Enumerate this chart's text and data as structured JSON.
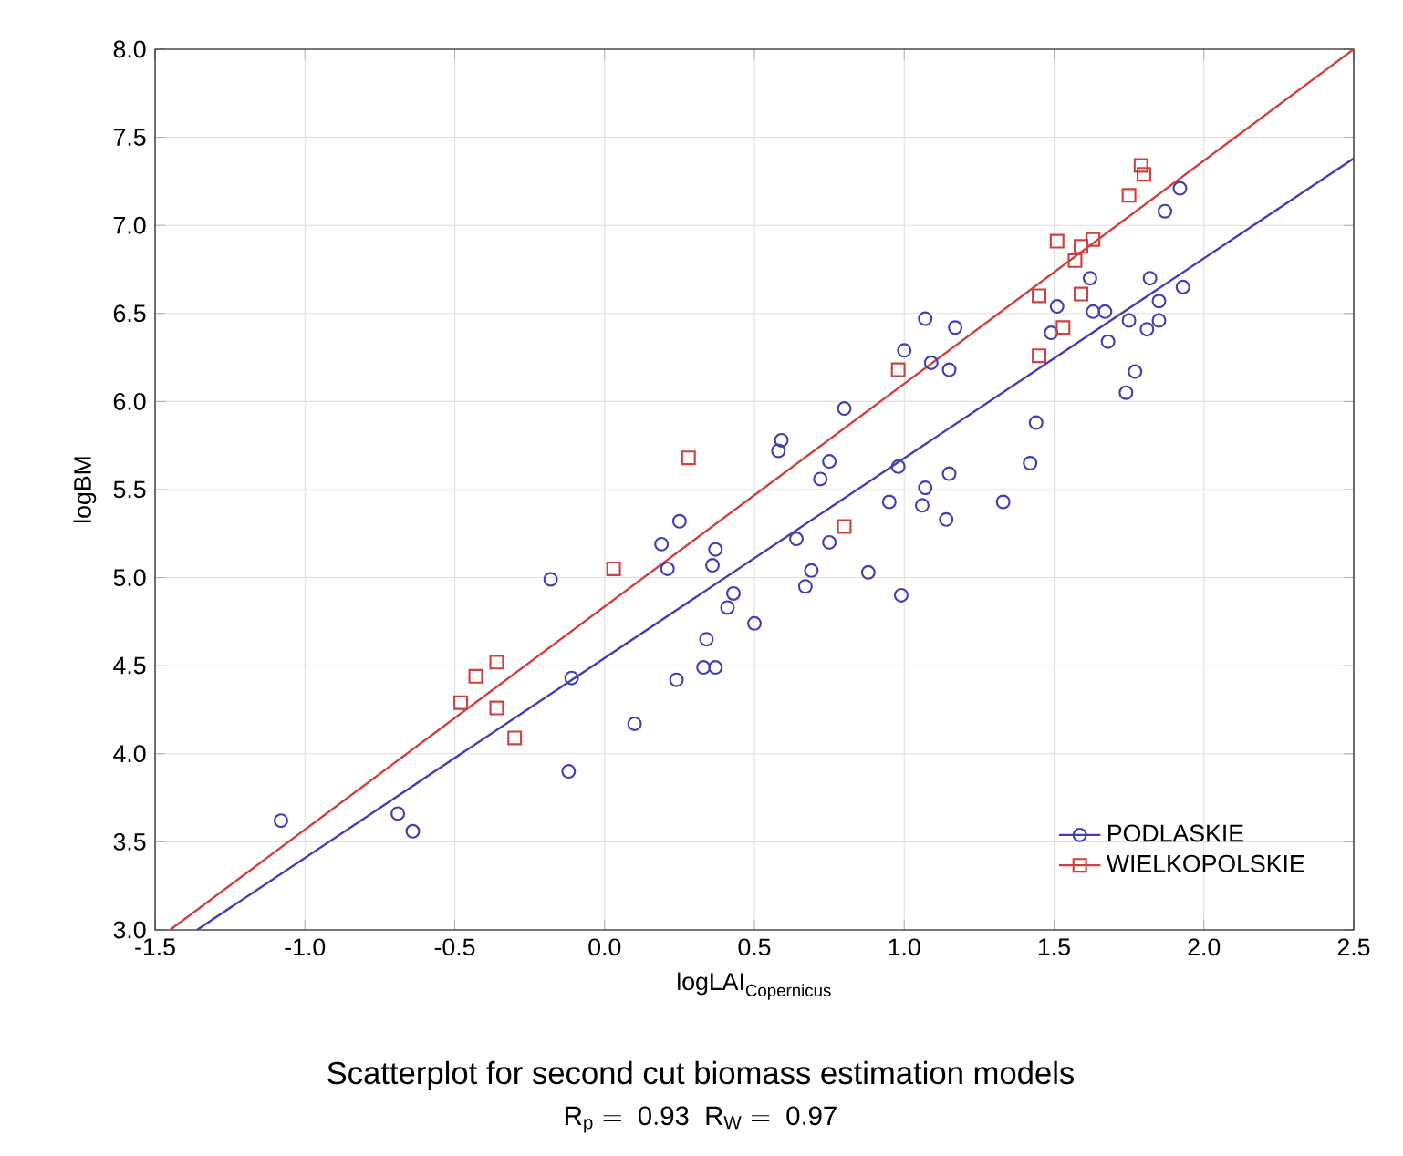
{
  "chart_data": {
    "type": "scatter",
    "title": "Scatterplot for second cut biomass estimation models",
    "subtitle": "\\mathrm{R}_{\\mathrm{p}}\\mathrm{\\ =\\ 0.93\\ \\ R}_{\\mathrm{W}}\\mathrm{\\ =\\ 0.97}",
    "xlabel": "\\mathrm{logLAI}_{\\mathrm{Copernicus}}",
    "ylabel": "logBM",
    "xlim": [
      -1.5,
      2.5
    ],
    "ylim": [
      3.0,
      8.0
    ],
    "xticks": [
      {
        "value": -1.5,
        "label": "-1.5"
      },
      {
        "value": -1,
        "label": "-1.0"
      },
      {
        "value": -0.5,
        "label": "-0.5"
      },
      {
        "value": 0,
        "label": "0.0"
      },
      {
        "value": 0.5,
        "label": "0.5"
      },
      {
        "value": 1,
        "label": "1.0"
      },
      {
        "value": 1.5,
        "label": "1.5"
      },
      {
        "value": 2,
        "label": "2.0"
      },
      {
        "value": 2.5,
        "label": "2.5"
      }
    ],
    "yticks": [
      {
        "value": 3,
        "label": "3.0"
      },
      {
        "value": 3.5,
        "label": "3.5"
      },
      {
        "value": 4,
        "label": "4.0"
      },
      {
        "value": 4.5,
        "label": "4.5"
      },
      {
        "value": 5,
        "label": "5.0"
      },
      {
        "value": 5.5,
        "label": "5.5"
      },
      {
        "value": 6,
        "label": "6.0"
      },
      {
        "value": 6.5,
        "label": "6.5"
      },
      {
        "value": 7,
        "label": "7.0"
      },
      {
        "value": 7.5,
        "label": "7.5"
      },
      {
        "value": 8,
        "label": "8.0"
      }
    ],
    "grid": true,
    "legend": "bottom right",
    "series": [
      {
        "name": "PODLASKIE",
        "color": "#4040b0",
        "marker": "circle",
        "x": [
          -1.08,
          -0.69,
          -0.64,
          -0.18,
          -0.11,
          -0.12,
          0.1,
          0.24,
          0.33,
          0.37,
          0.34,
          0.41,
          0.43,
          0.5,
          0.19,
          0.21,
          0.25,
          0.36,
          0.37,
          0.59,
          0.58,
          0.64,
          0.69,
          0.67,
          0.72,
          0.75,
          0.75,
          0.8,
          0.88,
          0.95,
          0.99,
          0.98,
          1.0,
          1.07,
          1.06,
          1.09,
          1.15,
          1.15,
          1.14,
          1.17,
          1.07,
          1.33,
          1.42,
          1.44,
          1.49,
          1.51,
          1.62,
          1.63,
          1.67,
          1.68,
          1.74,
          1.77,
          1.75,
          1.81,
          1.82,
          1.85,
          1.85,
          1.87,
          1.92,
          1.93
        ],
        "values": [
          3.62,
          3.66,
          3.56,
          4.99,
          4.43,
          3.9,
          4.17,
          4.42,
          4.49,
          4.49,
          4.65,
          4.83,
          4.91,
          4.74,
          5.19,
          5.05,
          5.32,
          5.07,
          5.16,
          5.78,
          5.72,
          5.22,
          5.04,
          4.95,
          5.56,
          5.66,
          5.2,
          5.96,
          5.03,
          5.43,
          4.9,
          5.63,
          6.29,
          5.51,
          5.41,
          6.22,
          6.18,
          5.59,
          5.33,
          6.42,
          6.47,
          5.43,
          5.65,
          5.88,
          6.39,
          6.54,
          6.7,
          6.51,
          6.51,
          6.34,
          6.05,
          6.17,
          6.46,
          6.41,
          6.7,
          6.57,
          6.46,
          7.08,
          7.21,
          6.65
        ]
      },
      {
        "name": "WIELKOPOLSKIE",
        "color": "#d04040",
        "marker": "square",
        "x": [
          -0.48,
          -0.43,
          -0.36,
          -0.36,
          -0.3,
          0.03,
          0.28,
          0.8,
          0.98,
          1.45,
          1.53,
          1.45,
          1.59,
          1.57,
          1.51,
          1.59,
          1.63,
          1.75,
          1.79,
          1.8
        ],
        "values": [
          4.29,
          4.44,
          4.52,
          4.26,
          4.09,
          5.05,
          5.68,
          5.29,
          6.18,
          6.26,
          6.42,
          6.6,
          6.61,
          6.8,
          6.91,
          6.88,
          6.92,
          7.17,
          7.34,
          7.29
        ]
      },
      {
        "type": "line",
        "color": "#4040b0",
        "x": [
          -1.36,
          2.5
        ],
        "values": [
          3.0,
          7.38
        ]
      },
      {
        "type": "line",
        "color": "#d04040",
        "x": [
          -1.45,
          2.5
        ],
        "values": [
          3.0,
          8.0
        ]
      }
    ]
  }
}
